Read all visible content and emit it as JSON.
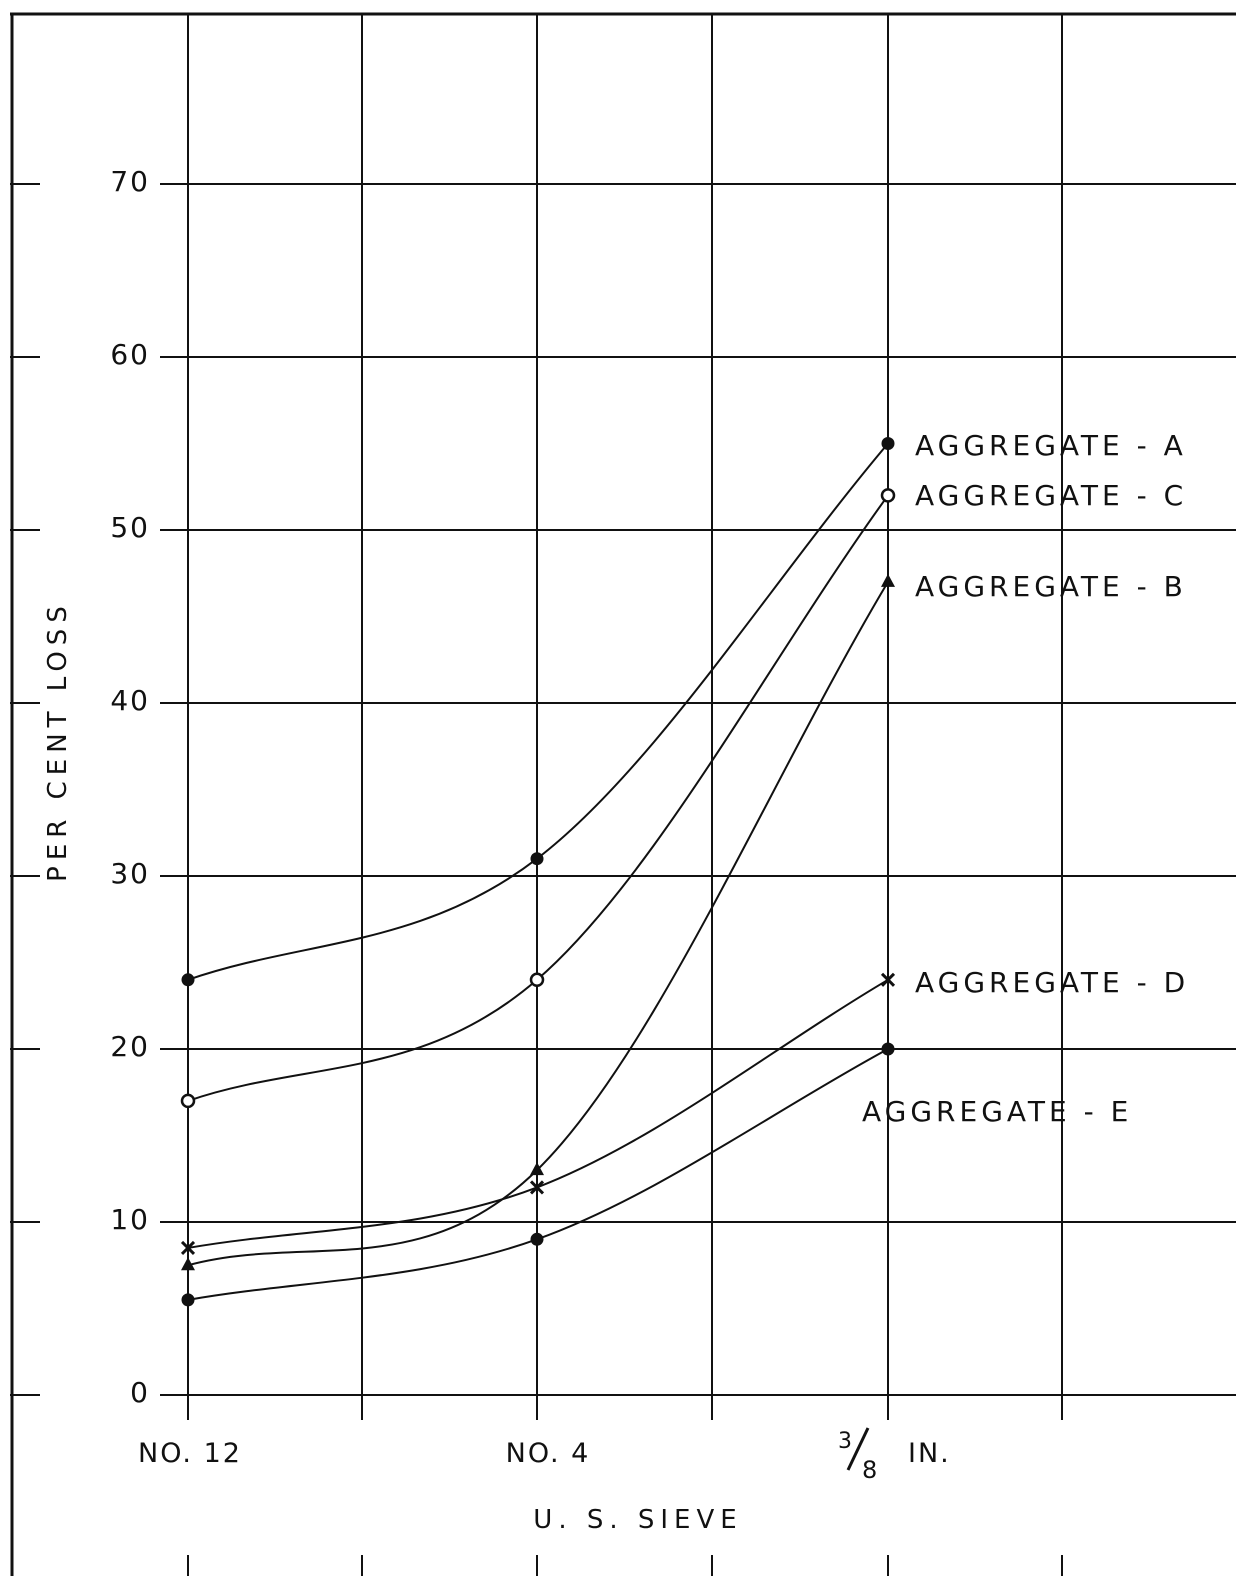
{
  "chart_data": {
    "type": "line",
    "title": "",
    "xlabel": "U. S. SIEVE",
    "ylabel": "PER CENT LOSS",
    "categories": [
      "NO. 12",
      "NO. 4",
      "3/8 IN."
    ],
    "x_tick_labels": {
      "no12": "NO. 12",
      "no4": "NO. 4",
      "three_eighths_num": "3",
      "three_eighths_den": "8",
      "three_eighths_unit": "IN."
    },
    "y_ticks": [
      "0",
      "10",
      "20",
      "30",
      "40",
      "50",
      "60",
      "70"
    ],
    "ylim": [
      0,
      70
    ],
    "grid": true,
    "series": [
      {
        "name": "AGGREGATE - A",
        "marker": "filled-circle",
        "values": [
          24,
          31,
          55
        ]
      },
      {
        "name": "AGGREGATE - C",
        "marker": "open-circle",
        "values": [
          17,
          24,
          52
        ]
      },
      {
        "name": "AGGREGATE - B",
        "marker": "filled-triangle",
        "values": [
          7.5,
          13,
          47
        ]
      },
      {
        "name": "AGGREGATE - D",
        "marker": "cross",
        "values": [
          8.5,
          12,
          24
        ]
      },
      {
        "name": "AGGREGATE - E",
        "marker": "filled-circle",
        "values": [
          5.5,
          9,
          20
        ]
      }
    ]
  }
}
